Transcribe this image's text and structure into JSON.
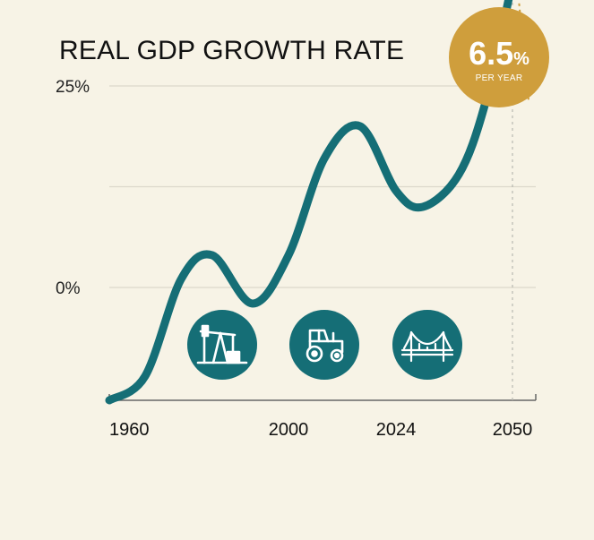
{
  "chart_data": {
    "type": "line",
    "title": "REAL GDP GROWTH RATE",
    "xlabel": "",
    "ylabel": "",
    "x_ticks": [
      "1960",
      "2000",
      "2024",
      "2050"
    ],
    "y_ticks": [
      "25%",
      "0%"
    ],
    "ylim": [
      -25,
      25
    ],
    "series": [
      {
        "x": [
          1960,
          1968,
          1976,
          1983,
          1992,
          2000,
          2008,
          2016,
          2024,
          2030,
          2038,
          2044,
          2050
        ],
        "values": [
          -14,
          -11,
          1,
          4,
          -2,
          4,
          16,
          20,
          12,
          10,
          14,
          23,
          38
        ],
        "color": "#156e76"
      }
    ],
    "icons": [
      "oil-pump-icon",
      "tractor-icon",
      "bridge-icon"
    ],
    "icon_color": "#156e76",
    "grid": true,
    "highlight": {
      "value": "6.5",
      "unit": "%",
      "caption": "PER YEAR",
      "color": "#cf9e3c"
    }
  }
}
